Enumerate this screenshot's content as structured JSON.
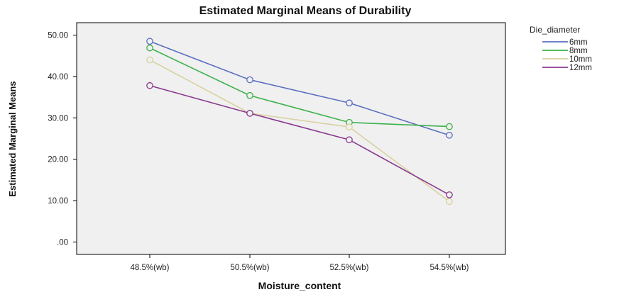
{
  "chart_data": {
    "type": "line",
    "title": "Estimated Marginal Means of Durability",
    "xlabel": "Moisture_content",
    "ylabel": "Estimated Marginal Means",
    "categories": [
      "48.5%(wb)",
      "50.5%(wb)",
      "52.5%(wb)",
      "54.5%(wb)"
    ],
    "ylim": [
      -3,
      53
    ],
    "yticks": [
      0,
      10,
      20,
      30,
      40,
      50
    ],
    "ytick_labels": [
      ".00",
      "10.00",
      "20.00",
      "30.00",
      "40.00",
      "50.00"
    ],
    "grid": false,
    "legend": {
      "title": "Die_diameter",
      "placement": "right"
    },
    "series": [
      {
        "name": "6mm",
        "color": "#5b6fc0",
        "values": [
          48.5,
          39.2,
          33.6,
          25.8
        ]
      },
      {
        "name": "8mm",
        "color": "#3cb24a",
        "values": [
          46.9,
          35.4,
          28.9,
          27.9
        ]
      },
      {
        "name": "10mm",
        "color": "#d9d1a0",
        "values": [
          44.0,
          31.1,
          27.8,
          9.8
        ]
      },
      {
        "name": "12mm",
        "color": "#8a3a8e",
        "values": [
          37.8,
          31.1,
          24.7,
          11.4
        ]
      }
    ],
    "marker": "circle-open",
    "plot_background": "#f0f0f0"
  }
}
